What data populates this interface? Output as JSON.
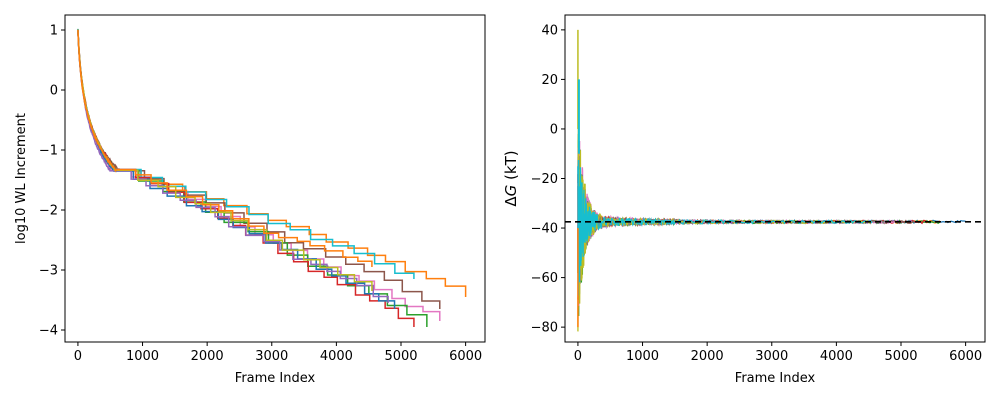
{
  "chart_data": [
    {
      "type": "line",
      "title": "",
      "xlabel": "Frame Index",
      "ylabel": "log10 WL Increment",
      "xlim": [
        -200,
        6300
      ],
      "ylim": [
        -4.2,
        1.25
      ],
      "xticks": [
        0,
        1000,
        2000,
        3000,
        4000,
        5000,
        6000
      ],
      "yticks": [
        -4,
        -3,
        -2,
        -1,
        0,
        1
      ],
      "grid": false,
      "legend": "none",
      "series_colors": [
        "#1f77b4",
        "#ff7f0e",
        "#2ca02c",
        "#d62728",
        "#9467bd",
        "#8c564b",
        "#e377c2",
        "#7f7f7f",
        "#bcbd22",
        "#17becf"
      ],
      "series": [
        {
          "color": "#ff7f0e",
          "end_x": 6000,
          "end_y": -3.45
        },
        {
          "color": "#e377c2",
          "end_x": 5600,
          "end_y": -3.85
        },
        {
          "color": "#8c564b",
          "end_x": 5600,
          "end_y": -3.65
        },
        {
          "color": "#2ca02c",
          "end_x": 5400,
          "end_y": -3.95
        },
        {
          "color": "#17becf",
          "end_x": 5200,
          "end_y": -3.15
        },
        {
          "color": "#d62728",
          "end_x": 5200,
          "end_y": -3.95
        },
        {
          "color": "#1f77b4",
          "end_x": 4900,
          "end_y": -3.65
        },
        {
          "color": "#9467bd",
          "end_x": 4800,
          "end_y": -3.55
        },
        {
          "color": "#bcbd22",
          "end_x": 4550,
          "end_y": -3.35
        },
        {
          "color": "#ff7f0e",
          "end_x": 4550,
          "end_y": -2.95
        }
      ]
    },
    {
      "type": "line",
      "title": "",
      "xlabel": "Frame Index",
      "ylabel_prefix": "Δ",
      "ylabel_var": "G",
      "ylabel_suffix": " (kT)",
      "xlim": [
        -200,
        6300
      ],
      "ylim": [
        -86,
        46
      ],
      "xticks": [
        0,
        1000,
        2000,
        3000,
        4000,
        5000,
        6000
      ],
      "yticks": [
        -80,
        -60,
        -40,
        -20,
        0,
        20,
        40
      ],
      "grid": false,
      "legend": "none",
      "reference_line": {
        "y": -37.5,
        "style": "dashed",
        "color": "#000000"
      },
      "converged_value": -37.5,
      "initial_spread": [
        -80,
        40
      ],
      "series_colors": [
        "#1f77b4",
        "#ff7f0e",
        "#2ca02c",
        "#d62728",
        "#9467bd",
        "#8c564b",
        "#e377c2",
        "#7f7f7f",
        "#bcbd22",
        "#17becf"
      ],
      "series_end_x": [
        6000,
        5600,
        5600,
        5400,
        5200,
        5200,
        4900,
        4800,
        4550,
        4550
      ]
    }
  ]
}
